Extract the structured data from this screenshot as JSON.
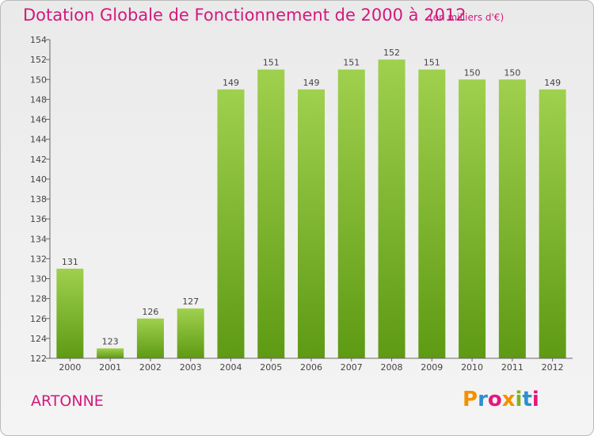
{
  "header": {
    "title": "Dotation Globale de Fonctionnement de 2000 à 2012",
    "unit": "(en milliers d'€)"
  },
  "footer": {
    "commune": "ARTONNE",
    "logo_text": "Proxiti"
  },
  "colors": {
    "accent": "#d2197c",
    "bar_top": "#9fd04e",
    "bar_bottom": "#5e9a14",
    "logo_letters": [
      "#f29100",
      "#2c8fd3",
      "#e6177c",
      "#f29100",
      "#7ab51d",
      "#2c8fd3",
      "#e6177c"
    ]
  },
  "chart_data": {
    "type": "bar",
    "title": "Dotation Globale de Fonctionnement de 2000 à 2012",
    "subtitle": "(en milliers d'€)",
    "categories": [
      "2000",
      "2001",
      "2002",
      "2003",
      "2004",
      "2005",
      "2006",
      "2007",
      "2008",
      "2009",
      "2010",
      "2011",
      "2012"
    ],
    "values": [
      131,
      123,
      126,
      127,
      149,
      151,
      149,
      151,
      152,
      151,
      150,
      150,
      149
    ],
    "ylim": [
      122,
      154
    ],
    "yticks": [
      122,
      124,
      126,
      128,
      130,
      132,
      134,
      136,
      138,
      140,
      142,
      144,
      146,
      148,
      150,
      152,
      154
    ],
    "grid": false,
    "legend": "none"
  }
}
